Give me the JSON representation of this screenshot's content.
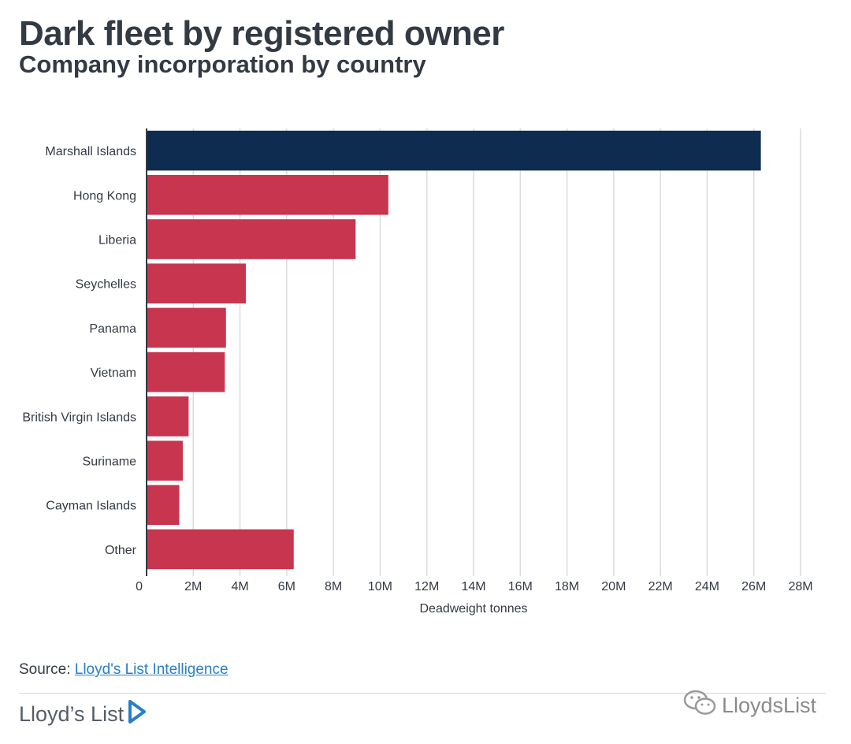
{
  "header": {
    "title": "Dark fleet by registered owner",
    "subtitle": "Company incorporation by country"
  },
  "chart_data": {
    "type": "bar",
    "orientation": "horizontal",
    "categories": [
      "Marshall Islands",
      "Hong Kong",
      "Liberia",
      "Seychelles",
      "Panama",
      "Vietnam",
      "British Virgin Islands",
      "Suriname",
      "Cayman Islands",
      "Other"
    ],
    "values": [
      26300000,
      10350000,
      8950000,
      4250000,
      3400000,
      3350000,
      1800000,
      1550000,
      1400000,
      6300000
    ],
    "colors": [
      "#0d2c4f",
      "#c8354f",
      "#c8354f",
      "#c8354f",
      "#c8354f",
      "#c8354f",
      "#c8354f",
      "#c8354f",
      "#c8354f",
      "#c8354f"
    ],
    "xlabel": "Deadweight tonnes",
    "ylabel": "",
    "xlim": [
      0,
      28000000
    ],
    "xticks": [
      0,
      2000000,
      4000000,
      6000000,
      8000000,
      10000000,
      12000000,
      14000000,
      16000000,
      18000000,
      20000000,
      22000000,
      24000000,
      26000000,
      28000000
    ],
    "xtick_labels": [
      "0",
      "2M",
      "4M",
      "6M",
      "8M",
      "10M",
      "12M",
      "14M",
      "16M",
      "18M",
      "20M",
      "22M",
      "24M",
      "26M",
      "28M"
    ],
    "grid": true
  },
  "footer": {
    "source_label": "Source: ",
    "source_link": "Lloyd's List Intelligence",
    "brand": "Lloyd’s List",
    "brand_color": "#2a7fc4",
    "watermark": "LloydsList"
  }
}
